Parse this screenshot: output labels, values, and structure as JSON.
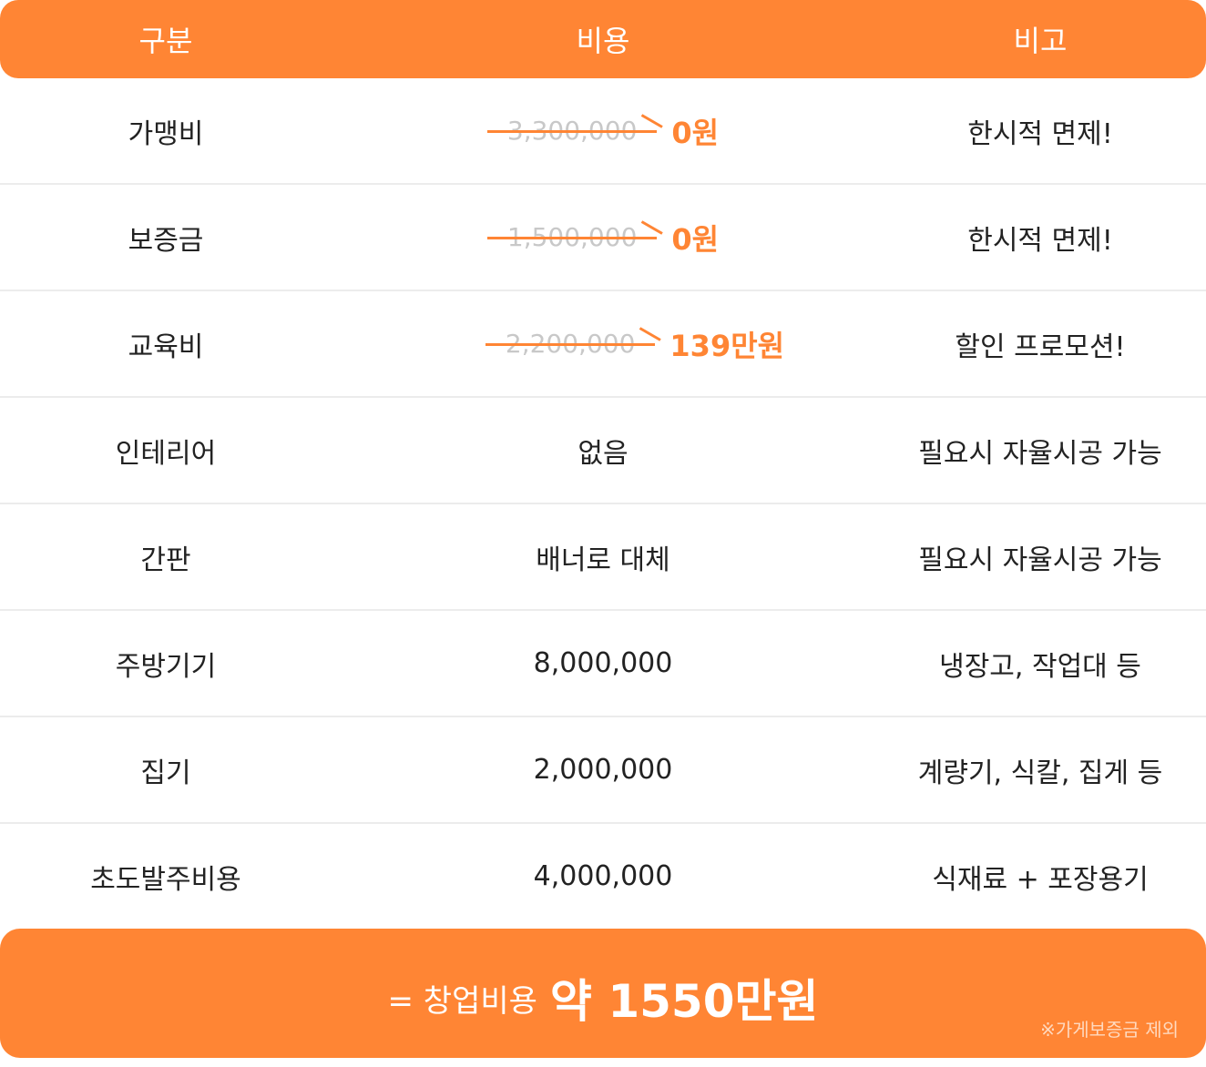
{
  "table": {
    "headers": [
      "구분",
      "비용",
      "비고"
    ],
    "rows": [
      {
        "category": "가맹비",
        "cost_old": "3,300,000",
        "cost_new": "0원",
        "note": "한시적 면제!"
      },
      {
        "category": "보증금",
        "cost_old": "1,500,000",
        "cost_new": "0원",
        "note": "한시적 면제!"
      },
      {
        "category": "교육비",
        "cost_old": "2,200,000",
        "cost_new": "139만원",
        "note": "할인 프로모션!"
      },
      {
        "category": "인테리어",
        "cost": "없음",
        "note": "필요시 자율시공 가능"
      },
      {
        "category": "간판",
        "cost": "배너로 대체",
        "note": "필요시 자율시공 가능"
      },
      {
        "category": "주방기기",
        "cost": "8,000,000",
        "note": "냉장고, 작업대 등"
      },
      {
        "category": "집기",
        "cost": "2,000,000",
        "note": "계량기, 식칼, 집게 등"
      },
      {
        "category": "초도발주비용",
        "cost": "4,000,000",
        "note": "식재료 + 포장용기"
      }
    ]
  },
  "footer": {
    "prefix": "= 창업비용",
    "total": "약 1550만원",
    "note": "※가게보증금 제외"
  },
  "colors": {
    "accent": "#FF8534",
    "divider": "#ECECEC",
    "struck_text": "#C8C8C8"
  }
}
